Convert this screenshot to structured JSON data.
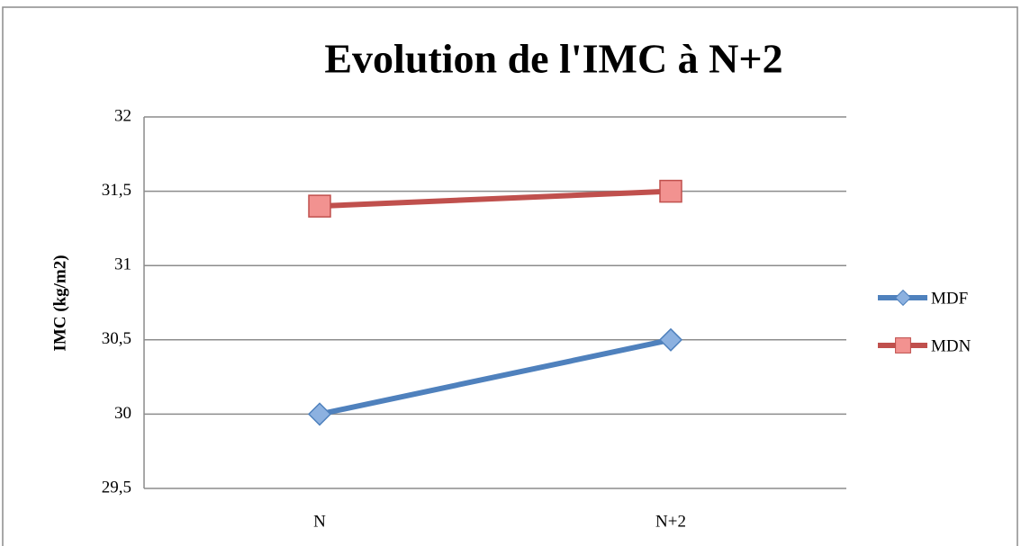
{
  "chart_data": {
    "type": "line",
    "title": "Evolution de l'IMC à N+2",
    "y_label": "IMC (kg/m2)",
    "categories": [
      "N",
      "N+2"
    ],
    "series": [
      {
        "name": "MDF",
        "color": "#4f81bd",
        "marker": "diamond",
        "values": [
          30,
          30.5
        ]
      },
      {
        "name": "MDN",
        "color": "#c0504d",
        "marker": "square",
        "values": [
          31.4,
          31.5
        ]
      }
    ],
    "ylim": [
      29.5,
      32
    ],
    "yticks": [
      {
        "value": 29.5,
        "label": "29,5"
      },
      30,
      {
        "value": 30.5,
        "label": "30,5"
      },
      31,
      {
        "value": 31.5,
        "label": "31,5"
      },
      32
    ],
    "grid": true,
    "legend": "right"
  }
}
